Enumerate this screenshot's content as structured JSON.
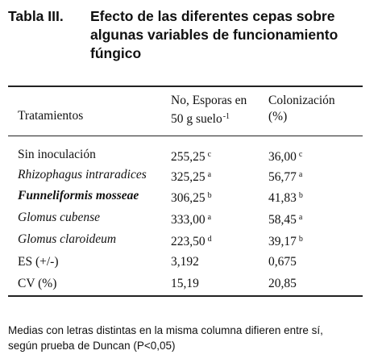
{
  "header": {
    "label": "Tabla III.",
    "title_lines": [
      "Efecto de las diferentes cepas sobre",
      "algunas variables de funcionamiento",
      "fúngico"
    ]
  },
  "table": {
    "columns": [
      {
        "lines": [
          "Tratamientos"
        ]
      },
      {
        "lines": [
          "No, Esporas en",
          "50 g suelo"
        ],
        "sup": "-1"
      },
      {
        "lines": [
          "Colonización",
          "(%)"
        ]
      }
    ],
    "rows": [
      {
        "treatment": "Sin inoculación",
        "style": "normal",
        "esporas": "255,25",
        "esporas_sig": "c",
        "colonizacion": "36,00",
        "colonizacion_sig": "c"
      },
      {
        "treatment": "Rhizophagus intraradices",
        "style": "italic",
        "esporas": "325,25",
        "esporas_sig": "a",
        "colonizacion": "56,77",
        "colonizacion_sig": "a"
      },
      {
        "treatment": "Funneliformis mosseae",
        "style": "bold-italic",
        "esporas": "306,25",
        "esporas_sig": "b",
        "colonizacion": "41,83",
        "colonizacion_sig": "b"
      },
      {
        "treatment": "Glomus cubense",
        "style": "italic",
        "esporas": "333,00",
        "esporas_sig": "a",
        "colonizacion": "58,45",
        "colonizacion_sig": "a"
      },
      {
        "treatment": "Glomus claroideum",
        "style": "italic",
        "esporas": "223,50",
        "esporas_sig": "d",
        "colonizacion": "39,17",
        "colonizacion_sig": "b"
      },
      {
        "treatment": "ES (+/-)",
        "style": "normal",
        "esporas": "3,192",
        "colonizacion": "0,675"
      },
      {
        "treatment": "CV (%)",
        "style": "normal",
        "esporas": "15,19",
        "colonizacion": "20,85"
      }
    ]
  },
  "footnote_lines": [
    "Medias con letras distintas en la misma columna difieren entre sí,",
    "según prueba de Duncan (P<0,05)"
  ]
}
